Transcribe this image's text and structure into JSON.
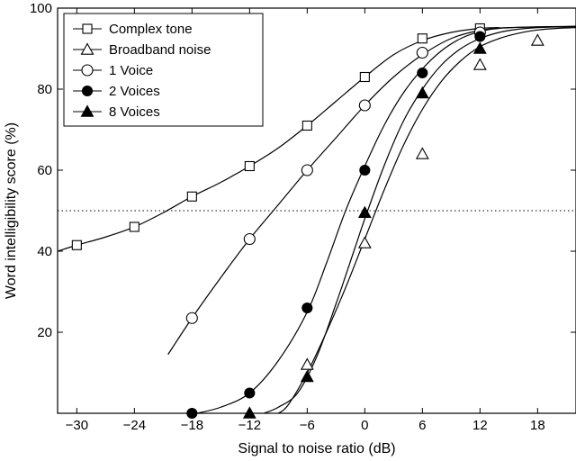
{
  "chart_data": {
    "type": "line",
    "title": "",
    "xlabel": "Signal to noise ratio (dB)",
    "ylabel": "Word intelligibility score (%)",
    "xlim": [
      -32,
      22
    ],
    "ylim": [
      0,
      100
    ],
    "xticks": [
      -30,
      -24,
      -18,
      -12,
      -6,
      0,
      6,
      12,
      18
    ],
    "xtick_labels": [
      "−30",
      "−24",
      "−18",
      "−12",
      "−6",
      "0",
      "6",
      "12",
      "18"
    ],
    "yticks": [
      20,
      40,
      60,
      80,
      100
    ],
    "ytick_labels": [
      "20",
      "40",
      "60",
      "80",
      "100"
    ],
    "grid": false,
    "legend_position": "top-left",
    "reference_line": {
      "y": 50,
      "style": "dotted"
    },
    "series": [
      {
        "name": "Complex tone",
        "marker": "open-square",
        "points": [
          [
            -30,
            41.5
          ],
          [
            -24,
            46
          ],
          [
            -18,
            53.5
          ],
          [
            -12,
            61
          ],
          [
            -6,
            71
          ],
          [
            0,
            83
          ],
          [
            6,
            92.5
          ],
          [
            12,
            95
          ]
        ],
        "curve": [
          [
            -32,
            40
          ],
          [
            -30,
            41.5
          ],
          [
            -27,
            43.5
          ],
          [
            -24,
            46
          ],
          [
            -21,
            49.5
          ],
          [
            -18,
            53.5
          ],
          [
            -15,
            57
          ],
          [
            -12,
            61
          ],
          [
            -9,
            65.5
          ],
          [
            -6,
            71
          ],
          [
            -3,
            77
          ],
          [
            0,
            83
          ],
          [
            3,
            88.5
          ],
          [
            6,
            92
          ],
          [
            9,
            94
          ],
          [
            12,
            95
          ],
          [
            14,
            95.2
          ]
        ]
      },
      {
        "name": "Broadband noise",
        "marker": "open-triangle",
        "points": [
          [
            -6,
            12
          ],
          [
            0,
            42
          ],
          [
            6,
            64
          ],
          [
            12,
            86
          ],
          [
            18,
            92
          ]
        ],
        "curve": [
          [
            -9,
            0
          ],
          [
            -8,
            2
          ],
          [
            -6,
            10
          ],
          [
            -4,
            20
          ],
          [
            -2,
            31
          ],
          [
            0,
            43
          ],
          [
            2,
            55
          ],
          [
            4,
            66
          ],
          [
            6,
            75
          ],
          [
            8,
            82
          ],
          [
            10,
            87
          ],
          [
            12,
            90.5
          ],
          [
            14,
            92.5
          ],
          [
            16,
            93.8
          ],
          [
            18,
            94.6
          ],
          [
            20,
            95
          ],
          [
            22,
            95.2
          ]
        ]
      },
      {
        "name": "1 Voice",
        "marker": "open-circle",
        "points": [
          [
            -18,
            23.5
          ],
          [
            -12,
            43
          ],
          [
            -6,
            60
          ],
          [
            0,
            76
          ],
          [
            6,
            89
          ],
          [
            12,
            94
          ]
        ],
        "curve": [
          [
            -20.5,
            14.5
          ],
          [
            -18,
            23.5
          ],
          [
            -15,
            33.5
          ],
          [
            -12,
            43
          ],
          [
            -9,
            51.5
          ],
          [
            -6,
            60
          ],
          [
            -3,
            68
          ],
          [
            0,
            76
          ],
          [
            3,
            83
          ],
          [
            6,
            88.5
          ],
          [
            9,
            92.5
          ],
          [
            12,
            94.5
          ],
          [
            15,
            95.2
          ],
          [
            22,
            95.4
          ]
        ]
      },
      {
        "name": "2 Voices",
        "marker": "filled-circle",
        "points": [
          [
            -18,
            0
          ],
          [
            -12,
            5
          ],
          [
            -6,
            26
          ],
          [
            0,
            60
          ],
          [
            6,
            84
          ],
          [
            12,
            93
          ]
        ],
        "curve": [
          [
            -17.5,
            0
          ],
          [
            -15,
            1.5
          ],
          [
            -12,
            5
          ],
          [
            -9,
            13
          ],
          [
            -6,
            25
          ],
          [
            -4,
            37
          ],
          [
            -2,
            50
          ],
          [
            0,
            61
          ],
          [
            2,
            71
          ],
          [
            4,
            79
          ],
          [
            6,
            85
          ],
          [
            8,
            89.5
          ],
          [
            10,
            92.5
          ],
          [
            12,
            94.2
          ],
          [
            14,
            95
          ],
          [
            18,
            95.4
          ],
          [
            22,
            95.5
          ]
        ]
      },
      {
        "name": "8 Voices",
        "marker": "filled-triangle",
        "points": [
          [
            -12,
            0
          ],
          [
            -6,
            9
          ],
          [
            0,
            49.5
          ],
          [
            6,
            79
          ],
          [
            12,
            90
          ]
        ],
        "curve": [
          [
            -10.5,
            0
          ],
          [
            -9,
            1.5
          ],
          [
            -7,
            5
          ],
          [
            -5,
            14
          ],
          [
            -3,
            27
          ],
          [
            -1,
            41
          ],
          [
            0,
            48
          ],
          [
            2,
            61
          ],
          [
            4,
            72
          ],
          [
            6,
            80
          ],
          [
            8,
            86
          ],
          [
            10,
            90
          ],
          [
            12,
            92.5
          ],
          [
            14,
            94
          ],
          [
            16,
            94.8
          ],
          [
            18,
            95.2
          ],
          [
            22,
            95.5
          ]
        ]
      }
    ]
  }
}
